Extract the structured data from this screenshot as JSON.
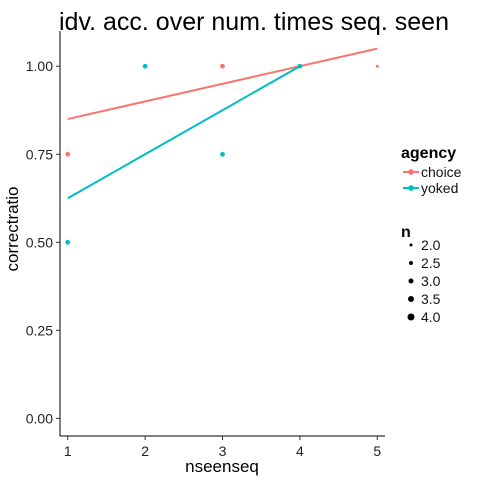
{
  "chart_data": {
    "type": "scatter",
    "title": "idv. acc. over num. times seq. seen",
    "xlabel": "nseenseq",
    "ylabel": "correctratio",
    "xlim": [
      0.9,
      5.1
    ],
    "ylim": [
      -0.05,
      1.1
    ],
    "xticks": [
      1,
      2,
      3,
      4,
      5
    ],
    "xtick_labels": [
      "1",
      "2",
      "3",
      "4",
      "5"
    ],
    "yticks": [
      0,
      0.25,
      0.5,
      0.75,
      1
    ],
    "ytick_labels": [
      "0.00",
      "0.25",
      "0.50",
      "0.75",
      "1.00"
    ],
    "grid": false,
    "legend_position": "right",
    "series": [
      {
        "name": "choice",
        "color": "#F8766D",
        "points": [
          {
            "x": 1,
            "y": 0.75,
            "n": 2.9
          },
          {
            "x": 3,
            "y": 1.0,
            "n": 2.9
          },
          {
            "x": 5,
            "y": 1.0,
            "n": 2.0
          }
        ],
        "trend": [
          [
            1,
            0.85
          ],
          [
            5,
            1.05
          ]
        ]
      },
      {
        "name": "yoked",
        "color": "#00BFC4",
        "points": [
          {
            "x": 1,
            "y": 0.5,
            "n": 2.9
          },
          {
            "x": 2,
            "y": 1.0,
            "n": 2.9
          },
          {
            "x": 3,
            "y": 0.75,
            "n": 2.9
          },
          {
            "x": 4,
            "y": 1.0,
            "n": 2.9
          }
        ],
        "trend": [
          [
            1,
            0.625
          ],
          [
            4,
            1.0
          ]
        ]
      }
    ],
    "legend": {
      "color_title": "agency",
      "color_entries": [
        "choice",
        "yoked"
      ],
      "size_title": "n",
      "size_entries": [
        {
          "label": "2.0",
          "value": 2.0
        },
        {
          "label": "2.5",
          "value": 2.5
        },
        {
          "label": "3.0",
          "value": 3.0
        },
        {
          "label": "3.5",
          "value": 3.5
        },
        {
          "label": "4.0",
          "value": 4.0
        }
      ]
    }
  }
}
